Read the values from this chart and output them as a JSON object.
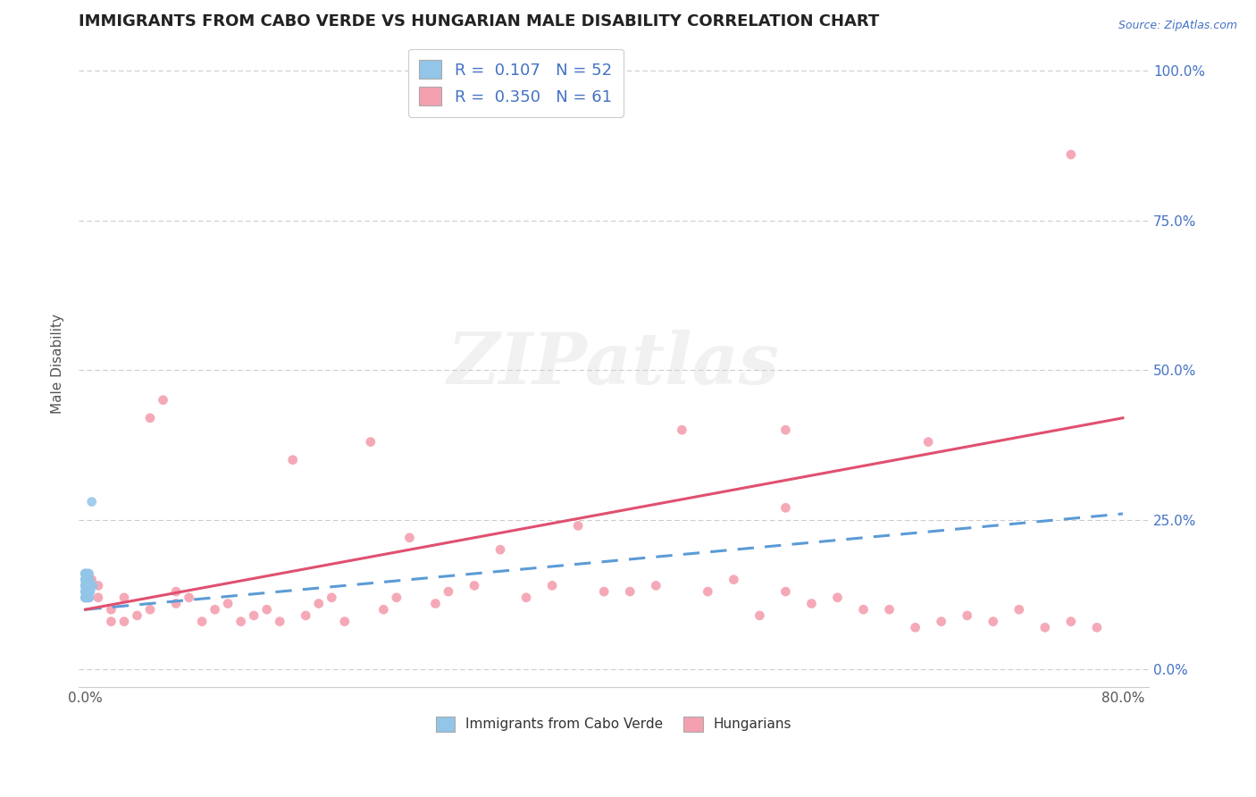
{
  "title": "IMMIGRANTS FROM CABO VERDE VS HUNGARIAN MALE DISABILITY CORRELATION CHART",
  "source": "Source: ZipAtlas.com",
  "ylabel": "Male Disability",
  "color_blue": "#92C5E8",
  "color_pink": "#F4A0B0",
  "color_blue_line": "#5B9BD5",
  "color_pink_line": "#E05070",
  "watermark_text": "ZIPatlas",
  "R_blue": 0.107,
  "N_blue": 52,
  "R_pink": 0.35,
  "N_pink": 61,
  "xlim": [
    -0.005,
    0.82
  ],
  "ylim": [
    -0.03,
    1.05
  ],
  "yticks": [
    0.0,
    0.25,
    0.5,
    0.75,
    1.0
  ],
  "xticks": [
    0.0,
    0.8
  ],
  "legend1_label": "Immigrants from Cabo Verde",
  "legend2_label": "Hungarians",
  "blue_line_x0": 0.0,
  "blue_line_y0": 0.1,
  "blue_line_x1": 0.8,
  "blue_line_y1": 0.26,
  "pink_line_x0": 0.0,
  "pink_line_y0": 0.1,
  "pink_line_x1": 0.8,
  "pink_line_y1": 0.42,
  "cabo_x": [
    0.0,
    0.0,
    0.0,
    0.0,
    0.0,
    0.0,
    0.0,
    0.0,
    0.0,
    0.0,
    0.0,
    0.0,
    0.0,
    0.0,
    0.0,
    0.0,
    0.0,
    0.0,
    0.0,
    0.0,
    0.001,
    0.001,
    0.001,
    0.001,
    0.001,
    0.001,
    0.001,
    0.001,
    0.001,
    0.001,
    0.002,
    0.002,
    0.002,
    0.002,
    0.002,
    0.002,
    0.002,
    0.002,
    0.002,
    0.002,
    0.003,
    0.003,
    0.003,
    0.003,
    0.003,
    0.003,
    0.003,
    0.003,
    0.004,
    0.004,
    0.005,
    0.006
  ],
  "cabo_y": [
    0.12,
    0.13,
    0.13,
    0.14,
    0.14,
    0.14,
    0.15,
    0.15,
    0.16,
    0.16,
    0.12,
    0.13,
    0.14,
    0.14,
    0.15,
    0.15,
    0.16,
    0.12,
    0.13,
    0.14,
    0.12,
    0.13,
    0.13,
    0.14,
    0.14,
    0.15,
    0.15,
    0.16,
    0.12,
    0.14,
    0.12,
    0.13,
    0.14,
    0.14,
    0.15,
    0.15,
    0.16,
    0.12,
    0.13,
    0.14,
    0.12,
    0.13,
    0.14,
    0.15,
    0.15,
    0.16,
    0.12,
    0.14,
    0.13,
    0.14,
    0.28,
    0.14
  ],
  "hun_x": [
    0.005,
    0.01,
    0.01,
    0.02,
    0.02,
    0.03,
    0.03,
    0.04,
    0.05,
    0.05,
    0.06,
    0.07,
    0.07,
    0.08,
    0.09,
    0.1,
    0.11,
    0.12,
    0.13,
    0.14,
    0.15,
    0.16,
    0.17,
    0.18,
    0.19,
    0.2,
    0.22,
    0.23,
    0.24,
    0.25,
    0.27,
    0.28,
    0.3,
    0.32,
    0.34,
    0.36,
    0.38,
    0.4,
    0.42,
    0.44,
    0.46,
    0.48,
    0.5,
    0.52,
    0.54,
    0.54,
    0.56,
    0.58,
    0.6,
    0.62,
    0.64,
    0.65,
    0.66,
    0.68,
    0.7,
    0.72,
    0.74,
    0.76,
    0.78,
    0.54,
    0.76
  ],
  "hun_y": [
    0.15,
    0.12,
    0.14,
    0.08,
    0.1,
    0.12,
    0.08,
    0.09,
    0.42,
    0.1,
    0.45,
    0.13,
    0.11,
    0.12,
    0.08,
    0.1,
    0.11,
    0.08,
    0.09,
    0.1,
    0.08,
    0.35,
    0.09,
    0.11,
    0.12,
    0.08,
    0.38,
    0.1,
    0.12,
    0.22,
    0.11,
    0.13,
    0.14,
    0.2,
    0.12,
    0.14,
    0.24,
    0.13,
    0.13,
    0.14,
    0.4,
    0.13,
    0.15,
    0.09,
    0.13,
    0.27,
    0.11,
    0.12,
    0.1,
    0.1,
    0.07,
    0.38,
    0.08,
    0.09,
    0.08,
    0.1,
    0.07,
    0.08,
    0.07,
    0.4,
    0.86
  ]
}
